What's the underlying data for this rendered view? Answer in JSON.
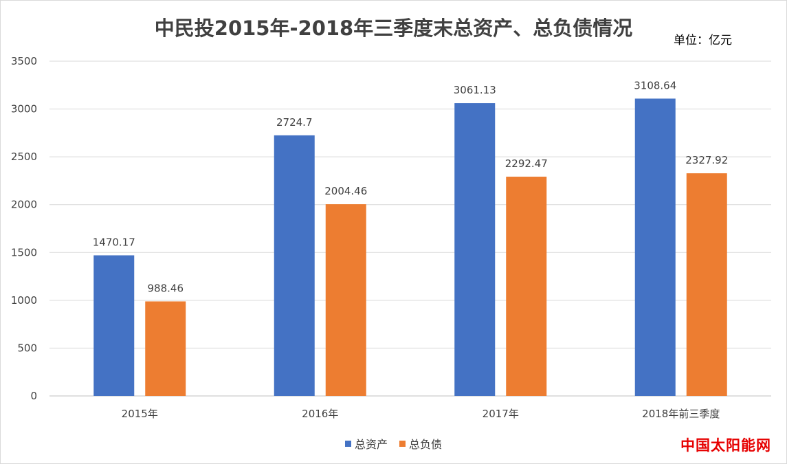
{
  "chart_data": {
    "type": "bar",
    "title": "中民投2015年-2018年三季度末总资产、总负债情况",
    "unit_label": "单位：亿元",
    "categories": [
      "2015年",
      "2016年",
      "2017年",
      "2018年前三季度"
    ],
    "series": [
      {
        "name": "总资产",
        "color": "#4472C4",
        "values": [
          1470.17,
          2724.7,
          3061.13,
          3108.64
        ],
        "labels": [
          "1470.17",
          "2724.7",
          "3061.13",
          "3108.64"
        ]
      },
      {
        "name": "总负债",
        "color": "#ED7D31",
        "values": [
          988.46,
          2004.46,
          2292.47,
          2327.92
        ],
        "labels": [
          "988.46",
          "2004.46",
          "2292.47",
          "2327.92"
        ]
      }
    ],
    "yticks": [
      "0",
      "500",
      "1000",
      "1500",
      "2000",
      "2500",
      "3000",
      "3500"
    ],
    "ylim": [
      0,
      3500
    ],
    "grid": true,
    "legend_position": "bottom"
  },
  "watermark": "中国太阳能网"
}
